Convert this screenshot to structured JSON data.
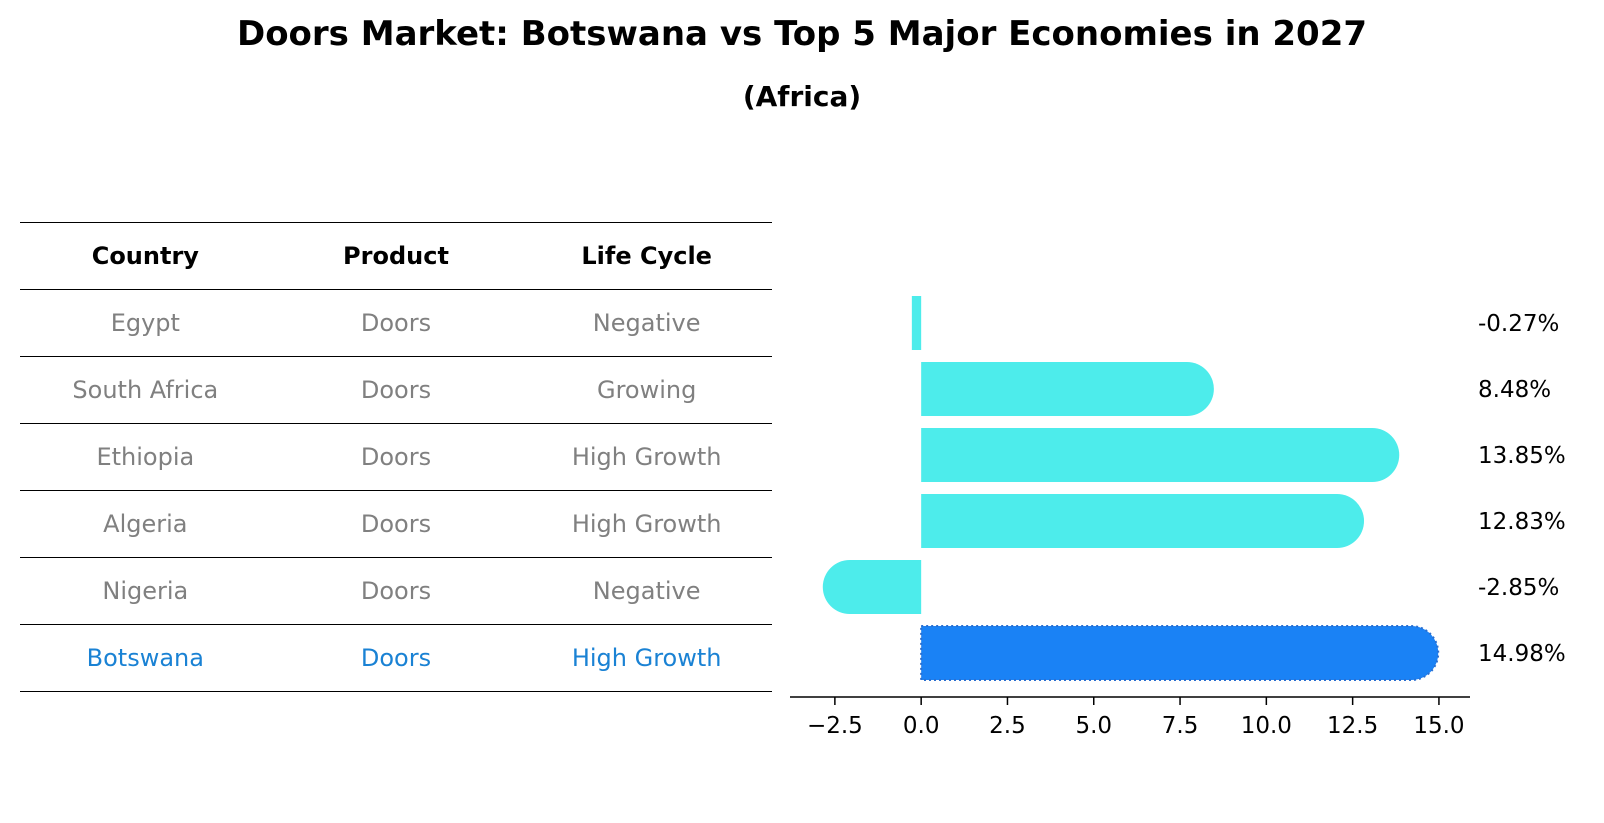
{
  "title": "Doors Market: Botswana vs Top 5 Major Economies in 2027",
  "subtitle": "(Africa)",
  "table": {
    "headers": [
      "Country",
      "Product",
      "Life Cycle"
    ],
    "rows": [
      [
        "Egypt",
        "Doors",
        "Negative"
      ],
      [
        "South Africa",
        "Doors",
        "Growing"
      ],
      [
        "Ethiopia",
        "Doors",
        "High Growth"
      ],
      [
        "Algeria",
        "Doors",
        "High Growth"
      ],
      [
        "Nigeria",
        "Doors",
        "Negative"
      ],
      [
        "Botswana",
        "Doors",
        "High Growth"
      ]
    ],
    "highlight_row": 5
  },
  "colors": {
    "bar": "#4deceb",
    "highlight": "#1a82f5",
    "highlight_text": "#1a82d4",
    "muted_text": "#808080"
  },
  "chart_data": {
    "type": "bar",
    "orientation": "horizontal",
    "categories": [
      "Egypt",
      "South Africa",
      "Ethiopia",
      "Algeria",
      "Nigeria",
      "Botswana"
    ],
    "values": [
      -0.27,
      8.48,
      13.85,
      12.83,
      -2.85,
      14.98
    ],
    "value_labels": [
      "-0.27%",
      "8.48%",
      "13.85%",
      "12.83%",
      "-2.85%",
      "14.98%"
    ],
    "highlight_category": "Botswana",
    "xlim": [
      -3.8,
      15.9
    ],
    "xticks": [
      -2.5,
      0.0,
      2.5,
      5.0,
      7.5,
      10.0,
      12.5,
      15.0
    ],
    "xtick_labels": [
      "−2.5",
      "0.0",
      "2.5",
      "5.0",
      "7.5",
      "10.0",
      "12.5",
      "15.0"
    ],
    "xlabel": "",
    "ylabel": "",
    "grid": false,
    "legend": false
  }
}
